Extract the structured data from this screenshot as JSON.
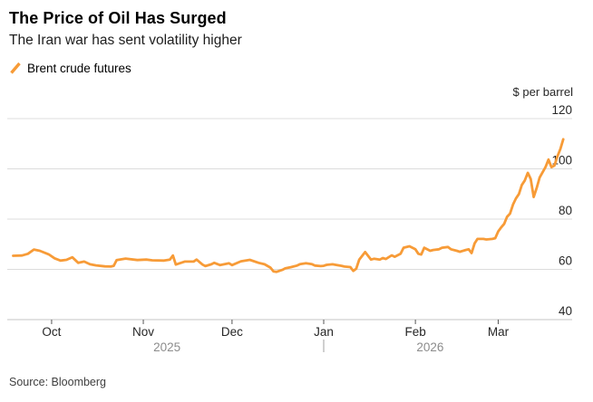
{
  "header": {
    "title": "The Price of Oil Has Surged",
    "subtitle": "The Iran war has sent volatility higher"
  },
  "legend": {
    "label": "Brent crude futures"
  },
  "axis": {
    "unit_label": "$ per barrel"
  },
  "source": {
    "text": "Source: Bloomberg"
  },
  "colors": {
    "line": "#F79B37",
    "grid": "#DCDCDC",
    "axis_line": "#C4C4C4",
    "tick": "#555555",
    "text_dark": "#262626",
    "text_muted": "#8C8C8C",
    "divider": "#A0A0A0"
  },
  "chart_data": {
    "type": "line",
    "title": "The Price of Oil Has Surged",
    "subtitle": "The Iran war has sent volatility higher",
    "ylabel": "$ per barrel",
    "ylim": [
      40,
      120
    ],
    "y_ticks": [
      40,
      60,
      80,
      100,
      120
    ],
    "x_domain": [
      "2025-09-16",
      "2026-03-26"
    ],
    "x_ticks": [
      {
        "date": "2025-10-01",
        "label": "Oct"
      },
      {
        "date": "2025-11-01",
        "label": "Nov"
      },
      {
        "date": "2025-12-01",
        "label": "Dec"
      },
      {
        "date": "2026-01-01",
        "label": "Jan"
      },
      {
        "date": "2026-02-01",
        "label": "Feb"
      },
      {
        "date": "2026-03-01",
        "label": "Mar"
      }
    ],
    "year_labels": [
      {
        "label": "2025",
        "anchor_date": "2025-11-09"
      },
      {
        "label": "2026",
        "anchor_date": "2026-02-06"
      }
    ],
    "year_divider_date": "2026-01-01",
    "grid": "horizontal-only",
    "legend_position": "top-left",
    "series": [
      {
        "name": "Brent crude futures",
        "color": "#F79B37",
        "points": [
          [
            "2025-09-18",
            65.4
          ],
          [
            "2025-09-21",
            65.5
          ],
          [
            "2025-09-23",
            66.2
          ],
          [
            "2025-09-25",
            67.9
          ],
          [
            "2025-09-27",
            67.4
          ],
          [
            "2025-09-30",
            66.0
          ],
          [
            "2025-10-02",
            64.4
          ],
          [
            "2025-10-04",
            63.5
          ],
          [
            "2025-10-06",
            63.8
          ],
          [
            "2025-10-08",
            64.8
          ],
          [
            "2025-10-10",
            62.6
          ],
          [
            "2025-10-12",
            63.1
          ],
          [
            "2025-10-14",
            62.0
          ],
          [
            "2025-10-16",
            61.6
          ],
          [
            "2025-10-19",
            61.2
          ],
          [
            "2025-10-21",
            61.1
          ],
          [
            "2025-10-22",
            61.4
          ],
          [
            "2025-10-23",
            63.7
          ],
          [
            "2025-10-26",
            64.3
          ],
          [
            "2025-10-30",
            63.7
          ],
          [
            "2025-11-02",
            63.9
          ],
          [
            "2025-11-04",
            63.6
          ],
          [
            "2025-11-08",
            63.5
          ],
          [
            "2025-11-10",
            63.9
          ],
          [
            "2025-11-11",
            65.5
          ],
          [
            "2025-11-12",
            61.9
          ],
          [
            "2025-11-15",
            63.1
          ],
          [
            "2025-11-18",
            63.1
          ],
          [
            "2025-11-19",
            63.9
          ],
          [
            "2025-11-21",
            61.9
          ],
          [
            "2025-11-22",
            61.3
          ],
          [
            "2025-11-24",
            62.0
          ],
          [
            "2025-11-25",
            62.6
          ],
          [
            "2025-11-27",
            61.7
          ],
          [
            "2025-11-30",
            62.4
          ],
          [
            "2025-12-01",
            61.7
          ],
          [
            "2025-12-04",
            63.2
          ],
          [
            "2025-12-07",
            63.8
          ],
          [
            "2025-12-10",
            62.6
          ],
          [
            "2025-12-12",
            62.0
          ],
          [
            "2025-12-14",
            60.7
          ],
          [
            "2025-12-15",
            59.2
          ],
          [
            "2025-12-16",
            59.0
          ],
          [
            "2025-12-18",
            59.8
          ],
          [
            "2025-12-19",
            60.4
          ],
          [
            "2025-12-21",
            60.9
          ],
          [
            "2025-12-23",
            61.5
          ],
          [
            "2025-12-24",
            62.1
          ],
          [
            "2025-12-26",
            62.4
          ],
          [
            "2025-12-28",
            62.1
          ],
          [
            "2025-12-29",
            61.5
          ],
          [
            "2025-12-31",
            61.3
          ],
          [
            "2026-01-01",
            61.4
          ],
          [
            "2026-01-02",
            61.8
          ],
          [
            "2026-01-04",
            62.0
          ],
          [
            "2026-01-05",
            61.8
          ],
          [
            "2026-01-07",
            61.4
          ],
          [
            "2026-01-08",
            61.1
          ],
          [
            "2026-01-10",
            60.9
          ],
          [
            "2026-01-11",
            59.4
          ],
          [
            "2026-01-12",
            60.3
          ],
          [
            "2026-01-13",
            63.9
          ],
          [
            "2026-01-15",
            66.9
          ],
          [
            "2026-01-17",
            63.9
          ],
          [
            "2026-01-18",
            64.2
          ],
          [
            "2026-01-20",
            63.9
          ],
          [
            "2026-01-21",
            64.5
          ],
          [
            "2026-01-22",
            64.1
          ],
          [
            "2026-01-24",
            65.6
          ],
          [
            "2026-01-25",
            65.0
          ],
          [
            "2026-01-27",
            66.2
          ],
          [
            "2026-01-28",
            68.6
          ],
          [
            "2026-01-30",
            69.2
          ],
          [
            "2026-02-01",
            68.0
          ],
          [
            "2026-02-02",
            66.2
          ],
          [
            "2026-02-03",
            65.9
          ],
          [
            "2026-02-04",
            68.6
          ],
          [
            "2026-02-06",
            67.4
          ],
          [
            "2026-02-07",
            67.7
          ],
          [
            "2026-02-09",
            68.0
          ],
          [
            "2026-02-10",
            68.6
          ],
          [
            "2026-02-12",
            68.9
          ],
          [
            "2026-02-13",
            68.0
          ],
          [
            "2026-02-15",
            67.4
          ],
          [
            "2026-02-16",
            67.0
          ],
          [
            "2026-02-18",
            67.7
          ],
          [
            "2026-02-19",
            68.0
          ],
          [
            "2026-02-20",
            66.5
          ],
          [
            "2026-02-21",
            70.3
          ],
          [
            "2026-02-22",
            72.1
          ],
          [
            "2026-02-24",
            72.1
          ],
          [
            "2026-02-25",
            71.9
          ],
          [
            "2026-02-27",
            72.1
          ],
          [
            "2026-02-28",
            72.4
          ],
          [
            "2026-03-01",
            75.1
          ],
          [
            "2026-03-02",
            76.7
          ],
          [
            "2026-03-03",
            78.1
          ],
          [
            "2026-03-04",
            80.9
          ],
          [
            "2026-03-05",
            82.2
          ],
          [
            "2026-03-06",
            85.8
          ],
          [
            "2026-03-07",
            88.2
          ],
          [
            "2026-03-08",
            90.0
          ],
          [
            "2026-03-09",
            93.6
          ],
          [
            "2026-03-10",
            95.4
          ],
          [
            "2026-03-11",
            98.4
          ],
          [
            "2026-03-12",
            96.0
          ],
          [
            "2026-03-13",
            88.8
          ],
          [
            "2026-03-14",
            92.4
          ],
          [
            "2026-03-15",
            96.5
          ],
          [
            "2026-03-17",
            100.7
          ],
          [
            "2026-03-18",
            103.7
          ],
          [
            "2026-03-19",
            100.7
          ],
          [
            "2026-03-20",
            101.3
          ],
          [
            "2026-03-21",
            104.9
          ],
          [
            "2026-03-22",
            107.9
          ],
          [
            "2026-03-23",
            111.8
          ]
        ]
      }
    ]
  }
}
